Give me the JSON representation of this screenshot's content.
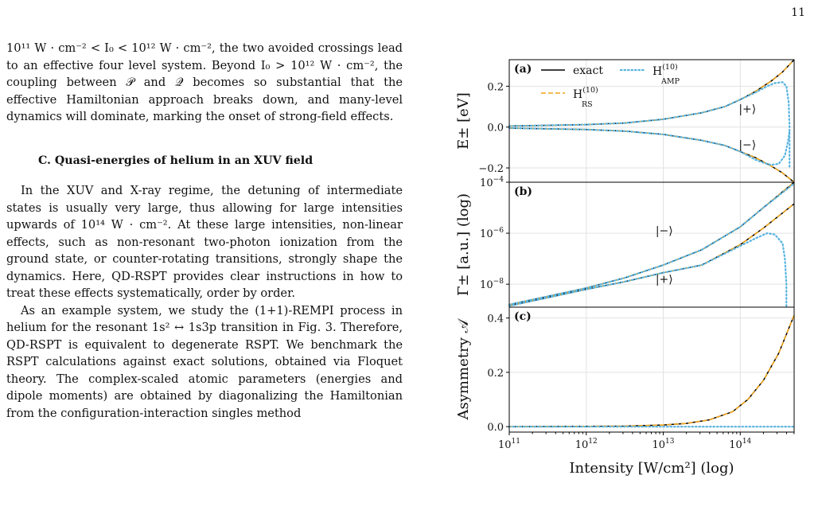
{
  "page_number": "11",
  "text": {
    "p1": "10¹¹ W · cm⁻² < I₀ < 10¹² W · cm⁻², the two avoided crossings lead to an effective four level system. Beyond I₀ > 10¹² W · cm⁻², the coupling between 𝒫 and 𝒬 becomes so substantial that the effective Hamiltonian approach breaks down, and many-level dynamics will dominate, marking the onset of strong-field effects.",
    "heading": "C. Quasi-energies of helium in an XUV field",
    "p2": "In the XUV and X-ray regime, the detuning of intermediate states is usually very large, thus allowing for large intensities upwards of 10¹⁴ W · cm⁻². At these large intensities, non-linear effects, such as non-resonant two-photon ionization from the ground state, or counter-rotating transitions, strongly shape the dynamics. Here, QD-RSPT provides clear instructions in how to treat these effects systematically, order by order.",
    "p3": "As an example system, we study the (1+1)-REMPI process in helium for the resonant 1s² ↔ 1s3p transition in Fig. 3. Therefore, QD-RSPT is equivalent to degenerate RSPT. We benchmark the RSPT calculations against exact solutions, obtained via Floquet theory. The complex-scaled atomic parameters (energies and dipole moments) are obtained by diagonalizing the Hamiltonian from the configuration-interaction singles method"
  },
  "figure": {
    "colors": {
      "exact": "#000000",
      "rs": "#f0a31a",
      "amp": "#57b3e0"
    },
    "legend": {
      "exact": "exact",
      "amp": "H",
      "amp_sup": "(10)",
      "amp_sub": "AMP",
      "rs": "H",
      "rs_sup": "(10)",
      "rs_sub": "RS"
    },
    "x_axis": {
      "label": "Intensity [W/cm²] (log)",
      "ticks": [
        11,
        12,
        13,
        14
      ],
      "tick_labels": [
        "10",
        "10",
        "10",
        "10"
      ],
      "tick_exps": [
        "11",
        "12",
        "13",
        "14"
      ]
    }
  },
  "chart_data": [
    {
      "type": "line",
      "panel_label": "(a)",
      "ylabel": "E± [eV]",
      "xlim": [
        11,
        14.7
      ],
      "ylim": [
        -0.27,
        0.33
      ],
      "yticks": [
        0.2,
        0.0,
        -0.2
      ],
      "ytick_labels": [
        "0.2",
        "0.0",
        "−0.2"
      ],
      "x_scale": "log10 of intensity",
      "annotations": [
        "|+⟩",
        "|−⟩"
      ],
      "series": [
        {
          "name": "exact",
          "x": [
            11,
            12,
            12.5,
            13,
            13.5,
            13.8,
            14,
            14.2,
            14.4,
            14.55,
            14.7
          ],
          "values": [
            0.005,
            0.012,
            0.02,
            0.038,
            0.07,
            0.1,
            0.135,
            0.175,
            0.225,
            0.27,
            0.33
          ]
        },
        {
          "name": "exact",
          "x": [
            11,
            12,
            12.5,
            13,
            13.5,
            13.8,
            14,
            14.2,
            14.4,
            14.55,
            14.7
          ],
          "values": [
            -0.005,
            -0.012,
            -0.02,
            -0.036,
            -0.065,
            -0.09,
            -0.12,
            -0.15,
            -0.19,
            -0.225,
            -0.27
          ]
        },
        {
          "name": "H(10) RS",
          "x": [
            11,
            12,
            12.5,
            13,
            13.5,
            13.8,
            14,
            14.2,
            14.4,
            14.55,
            14.7
          ],
          "values": [
            0.005,
            0.012,
            0.02,
            0.038,
            0.07,
            0.1,
            0.135,
            0.175,
            0.225,
            0.27,
            0.33
          ]
        },
        {
          "name": "H(10) RS",
          "x": [
            11,
            12,
            12.5,
            13,
            13.5,
            13.8,
            14,
            14.2,
            14.4,
            14.55,
            14.7
          ],
          "values": [
            -0.005,
            -0.012,
            -0.02,
            -0.036,
            -0.065,
            -0.09,
            -0.12,
            -0.15,
            -0.19,
            -0.225,
            -0.27
          ]
        },
        {
          "name": "H(10) AMP",
          "x": [
            11,
            12,
            12.5,
            13,
            13.5,
            13.8,
            14,
            14.2,
            14.35,
            14.45,
            14.55,
            14.6,
            14.63,
            14.64,
            14.64
          ],
          "values": [
            0.005,
            0.012,
            0.02,
            0.038,
            0.07,
            0.1,
            0.135,
            0.17,
            0.2,
            0.215,
            0.22,
            0.2,
            0.12,
            0.0,
            -0.2
          ]
        },
        {
          "name": "H(10) AMP",
          "x": [
            11,
            12,
            12.5,
            13,
            13.5,
            13.8,
            14,
            14.1,
            14.2,
            14.3,
            14.4,
            14.5,
            14.58,
            14.62,
            14.64
          ],
          "values": [
            -0.005,
            -0.012,
            -0.02,
            -0.036,
            -0.065,
            -0.09,
            -0.12,
            -0.14,
            -0.16,
            -0.175,
            -0.185,
            -0.18,
            -0.14,
            -0.07,
            -0.02
          ]
        }
      ]
    },
    {
      "type": "line",
      "panel_label": "(b)",
      "ylabel": "Γ± [a.u.] (log)",
      "xlim": [
        11,
        14.7
      ],
      "ylim": [
        -8.9,
        -4
      ],
      "y_scale": "log10",
      "yticks": [
        -4,
        -6,
        -8
      ],
      "ytick_labels": [
        "10",
        "10",
        "10"
      ],
      "ytick_exps": [
        "−4",
        "−6",
        "−8"
      ],
      "annotations": [
        "|−⟩",
        "|+⟩"
      ],
      "series": [
        {
          "name": "exact",
          "x": [
            11,
            12,
            12.5,
            13,
            13.5,
            14,
            14.3,
            14.7
          ],
          "values": [
            -8.8,
            -8.15,
            -7.75,
            -7.25,
            -6.65,
            -5.75,
            -5.0,
            -4.0
          ]
        },
        {
          "name": "exact",
          "x": [
            11,
            12,
            12.5,
            13,
            13.5,
            14,
            14.3,
            14.7
          ],
          "values": [
            -8.85,
            -8.2,
            -7.9,
            -7.55,
            -7.25,
            -6.45,
            -5.8,
            -4.85
          ]
        },
        {
          "name": "H(10) RS",
          "x": [
            11,
            12,
            12.5,
            13,
            13.5,
            14,
            14.3,
            14.7
          ],
          "values": [
            -8.8,
            -8.15,
            -7.75,
            -7.25,
            -6.65,
            -5.75,
            -5.0,
            -4.0
          ]
        },
        {
          "name": "H(10) RS",
          "x": [
            11,
            12,
            12.5,
            13,
            13.5,
            14,
            14.3,
            14.7
          ],
          "values": [
            -8.85,
            -8.2,
            -7.9,
            -7.55,
            -7.25,
            -6.45,
            -5.8,
            -4.85
          ]
        },
        {
          "name": "H(10) AMP",
          "x": [
            11,
            12,
            12.5,
            13,
            13.5,
            14,
            14.3,
            14.7
          ],
          "values": [
            -8.8,
            -8.15,
            -7.75,
            -7.25,
            -6.65,
            -5.75,
            -5.0,
            -4.05
          ]
        },
        {
          "name": "H(10) AMP",
          "x": [
            11,
            12,
            12.5,
            13,
            13.5,
            14,
            14.2,
            14.35,
            14.45,
            14.55,
            14.58,
            14.6,
            14.6
          ],
          "values": [
            -8.85,
            -8.2,
            -7.9,
            -7.55,
            -7.25,
            -6.5,
            -6.2,
            -6.0,
            -6.05,
            -6.4,
            -7.0,
            -8.0,
            -8.9
          ]
        }
      ]
    },
    {
      "type": "line",
      "panel_label": "(c)",
      "ylabel": "Asymmetry 𝒜",
      "xlim": [
        11,
        14.7
      ],
      "ylim": [
        -0.02,
        0.44
      ],
      "yticks": [
        0.0,
        0.2,
        0.4
      ],
      "ytick_labels": [
        "0.0",
        "0.2",
        "0.4"
      ],
      "series": [
        {
          "name": "exact",
          "x": [
            11,
            12,
            12.5,
            13,
            13.3,
            13.6,
            13.9,
            14.1,
            14.3,
            14.5,
            14.7
          ],
          "values": [
            0.0,
            0.001,
            0.002,
            0.006,
            0.012,
            0.025,
            0.055,
            0.1,
            0.17,
            0.27,
            0.41
          ]
        },
        {
          "name": "H(10) RS",
          "x": [
            11,
            12,
            12.5,
            13,
            13.3,
            13.6,
            13.9,
            14.1,
            14.3,
            14.5,
            14.7
          ],
          "values": [
            0.0,
            0.001,
            0.002,
            0.006,
            0.012,
            0.025,
            0.055,
            0.1,
            0.17,
            0.27,
            0.41
          ]
        },
        {
          "name": "H(10) AMP",
          "x": [
            11,
            14.7
          ],
          "values": [
            0.0,
            0.0
          ]
        }
      ]
    }
  ]
}
